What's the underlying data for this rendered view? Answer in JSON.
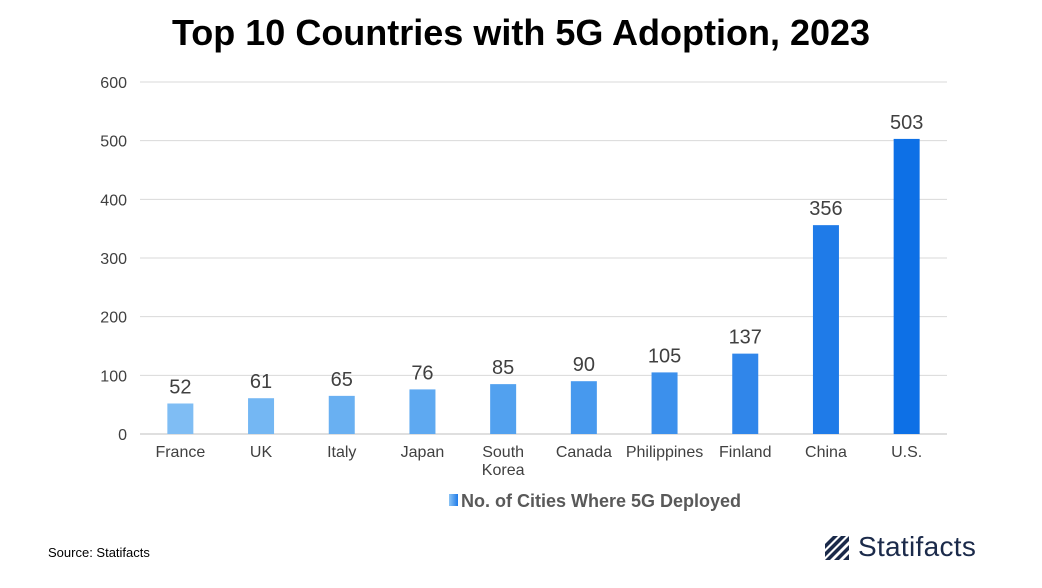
{
  "chart_data": {
    "type": "bar",
    "title": "Top 10 Countries with 5G Adoption, 2023",
    "categories": [
      "France",
      "UK",
      "Italy",
      "Japan",
      "South Korea",
      "Canada",
      "Philippines",
      "Finland",
      "China",
      "U.S."
    ],
    "category_lines": [
      [
        "France"
      ],
      [
        "UK"
      ],
      [
        "Italy"
      ],
      [
        "Japan"
      ],
      [
        "South",
        "Korea"
      ],
      [
        "Canada"
      ],
      [
        "Philippines"
      ],
      [
        "Finland"
      ],
      [
        "China"
      ],
      [
        "U.S."
      ]
    ],
    "series": [
      {
        "name": "No. of Cities Where 5G Deployed",
        "values": [
          52,
          61,
          65,
          76,
          85,
          90,
          105,
          137,
          356,
          503
        ]
      }
    ],
    "xlabel": "",
    "ylabel": "",
    "ylim": [
      0,
      600
    ],
    "yticks": [
      0,
      100,
      200,
      300,
      400,
      500,
      600
    ],
    "grid": true,
    "legend_position": "bottom",
    "bar_colors": [
      "#7fbdf4",
      "#74b7f3",
      "#69b0f2",
      "#5ea9f1",
      "#52a1ef",
      "#4799ee",
      "#3c90ec",
      "#3086ea",
      "#1f7be8",
      "#0d70e6"
    ],
    "colors": {
      "grid": "#d9d9d9",
      "axis": "#bfbfbf",
      "legend_swatch_light": "#8cc4f5",
      "legend_swatch_dark": "#1f7be8"
    }
  },
  "footer": {
    "source": "Source: Statifacts",
    "brand": "Statifacts",
    "brand_icon": "statifacts-logo-icon"
  }
}
